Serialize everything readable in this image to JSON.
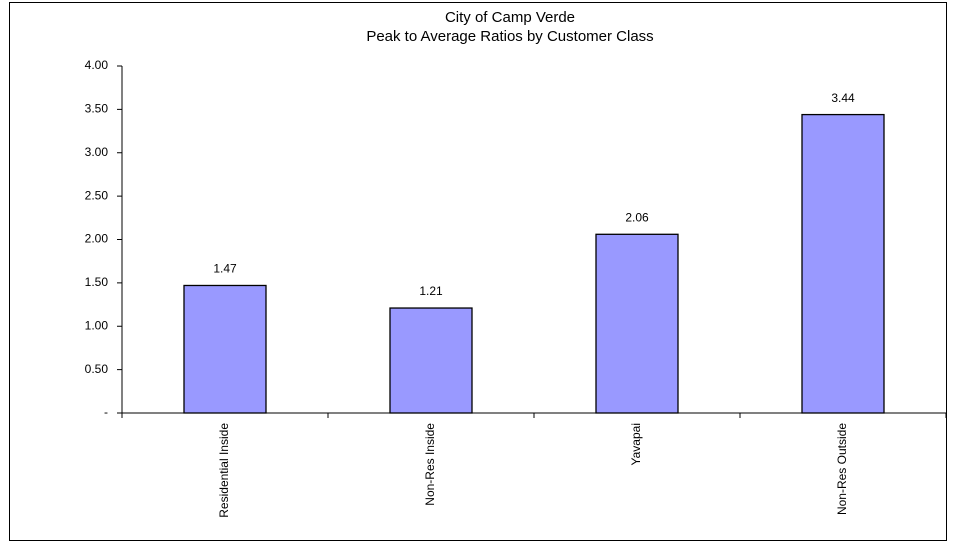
{
  "chart_data": {
    "type": "bar",
    "title": "City of Camp Verde",
    "subtitle": "Peak to Average Ratios by Customer Class",
    "categories": [
      "Residential Inside",
      "Non-Res Inside",
      "Yavapai",
      "Non-Res Outside"
    ],
    "values": [
      1.47,
      1.21,
      2.06,
      3.44
    ],
    "color": "#9999ff",
    "ylim": [
      0,
      4
    ],
    "yticks": [
      {
        "value": 0,
        "label": "-"
      },
      {
        "value": 0.5,
        "label": "0.50"
      },
      {
        "value": 1,
        "label": "1.00"
      },
      {
        "value": 1.5,
        "label": "1.50"
      },
      {
        "value": 2,
        "label": "2.00"
      },
      {
        "value": 2.5,
        "label": "2.50"
      },
      {
        "value": 3,
        "label": "3.00"
      },
      {
        "value": 3.5,
        "label": "3.50"
      },
      {
        "value": 4,
        "label": "4.00"
      }
    ],
    "grid": false
  }
}
